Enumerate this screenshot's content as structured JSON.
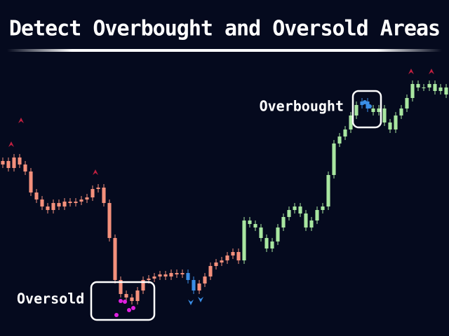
{
  "chart_data": {
    "type": "candlestick",
    "title": "Detect Overbought and Oversold Areas",
    "annotations": [
      "Overbought",
      "Oversold"
    ],
    "ylim": [
      0,
      400
    ],
    "open": [
      245,
      250,
      240,
      255,
      245,
      235,
      205,
      195,
      185,
      180,
      190,
      185,
      192,
      190,
      192,
      195,
      198,
      210,
      212,
      190,
      140,
      80,
      60,
      55,
      50,
      65,
      80,
      82,
      85,
      88,
      85,
      90,
      88,
      90,
      80,
      65,
      75,
      85,
      100,
      105,
      108,
      115,
      120,
      108,
      165,
      160,
      155,
      140,
      125,
      135,
      155,
      170,
      180,
      185,
      175,
      155,
      165,
      180,
      185,
      230,
      275,
      285,
      295,
      315,
      330,
      335,
      325,
      320,
      325,
      305,
      295,
      315,
      325,
      340,
      360,
      355,
      355,
      360,
      350,
      355
    ],
    "high": [
      255,
      255,
      260,
      260,
      250,
      240,
      210,
      200,
      190,
      195,
      195,
      197,
      197,
      197,
      200,
      203,
      215,
      217,
      217,
      195,
      145,
      85,
      65,
      60,
      70,
      85,
      87,
      90,
      93,
      93,
      95,
      95,
      95,
      95,
      85,
      80,
      90,
      105,
      110,
      113,
      120,
      125,
      125,
      170,
      170,
      165,
      160,
      145,
      140,
      160,
      175,
      185,
      190,
      190,
      180,
      170,
      185,
      190,
      235,
      280,
      290,
      300,
      320,
      335,
      340,
      340,
      330,
      330,
      330,
      310,
      320,
      330,
      345,
      365,
      365,
      360,
      365,
      365,
      360,
      360
    ],
    "low": [
      240,
      235,
      235,
      240,
      230,
      200,
      190,
      180,
      175,
      175,
      180,
      180,
      185,
      185,
      187,
      190,
      193,
      205,
      185,
      135,
      75,
      55,
      50,
      45,
      45,
      60,
      75,
      77,
      80,
      80,
      80,
      83,
      83,
      75,
      60,
      60,
      70,
      80,
      95,
      100,
      103,
      110,
      103,
      103,
      155,
      150,
      135,
      120,
      120,
      130,
      150,
      165,
      175,
      170,
      150,
      150,
      160,
      175,
      180,
      225,
      270,
      280,
      290,
      310,
      325,
      320,
      315,
      315,
      300,
      290,
      290,
      310,
      320,
      335,
      350,
      350,
      350,
      345,
      345,
      340
    ],
    "close": [
      250,
      240,
      255,
      245,
      235,
      205,
      195,
      185,
      180,
      190,
      185,
      192,
      190,
      192,
      195,
      198,
      210,
      212,
      190,
      140,
      80,
      60,
      55,
      50,
      65,
      80,
      82,
      85,
      88,
      85,
      90,
      88,
      90,
      80,
      65,
      75,
      85,
      100,
      105,
      108,
      115,
      120,
      108,
      165,
      160,
      155,
      140,
      125,
      135,
      155,
      170,
      180,
      185,
      175,
      155,
      165,
      180,
      185,
      230,
      275,
      285,
      295,
      315,
      330,
      335,
      325,
      320,
      325,
      305,
      295,
      315,
      325,
      340,
      360,
      355,
      355,
      360,
      350,
      355,
      345
    ],
    "colors": [
      "#f4907c",
      "#f4907c",
      "#f4907c",
      "#f4907c",
      "#f4907c",
      "#f4907c",
      "#f4907c",
      "#f4907c",
      "#f4907c",
      "#f4907c",
      "#f4907c",
      "#f4907c",
      "#f4907c",
      "#f4907c",
      "#f4907c",
      "#f4907c",
      "#f4907c",
      "#f4907c",
      "#f4907c",
      "#f4907c",
      "#f4907c",
      "#f4907c",
      "#f4907c",
      "#f4907c",
      "#f4907c",
      "#f4907c",
      "#f4907c",
      "#f4907c",
      "#f4907c",
      "#f4907c",
      "#f4907c",
      "#f4907c",
      "#f4907c",
      "#3a8ee6",
      "#3a8ee6",
      "#f4907c",
      "#f4907c",
      "#f4907c",
      "#f4907c",
      "#f4907c",
      "#f4907c",
      "#f4907c",
      "#f4907c",
      "#a8e6a0",
      "#a8e6a0",
      "#a8e6a0",
      "#a8e6a0",
      "#a8e6a0",
      "#a8e6a0",
      "#a8e6a0",
      "#a8e6a0",
      "#a8e6a0",
      "#a8e6a0",
      "#a8e6a0",
      "#a8e6a0",
      "#a8e6a0",
      "#a8e6a0",
      "#a8e6a0",
      "#a8e6a0",
      "#a8e6a0",
      "#a8e6a0",
      "#a8e6a0",
      "#a8e6a0",
      "#a8e6a0",
      "#3a8ee6",
      "#3a8ee6",
      "#a8e6a0",
      "#a8e6a0",
      "#a8e6a0",
      "#a8e6a0",
      "#a8e6a0",
      "#a8e6a0",
      "#a8e6a0",
      "#a8e6a0",
      "#a8e6a0",
      "#a8e6a0",
      "#a8e6a0",
      "#a8e6a0",
      "#a8e6a0",
      "#a8e6a0"
    ]
  }
}
